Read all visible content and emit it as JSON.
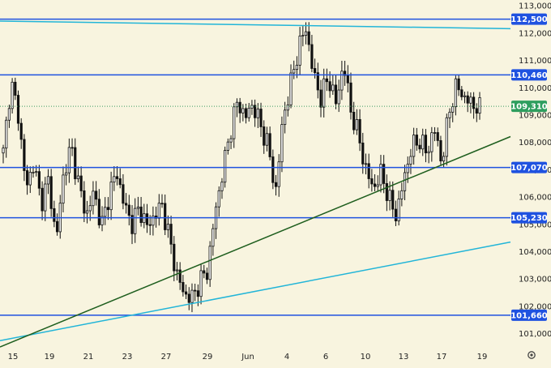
{
  "chart_data": {
    "type": "candlestick",
    "ylim": [
      100500,
      113200
    ],
    "y_ticks": [
      101000,
      102000,
      103000,
      104000,
      105000,
      106000,
      107000,
      108000,
      109000,
      110000,
      111000,
      112000,
      113000
    ],
    "y_tick_labels": [
      "101,000",
      "102,000",
      "103,000",
      "104,000",
      "105,000",
      "106,000",
      "107,000",
      "108,000",
      "109,000",
      "110,000",
      "111,000",
      "112,000",
      "113,000"
    ],
    "x_tick_labels": [
      "15",
      "19",
      "21",
      "23",
      "27",
      "29",
      "Jun",
      "4",
      "6",
      "10",
      "13",
      "17",
      "19"
    ],
    "horizontal_levels": [
      {
        "value": 112500,
        "label": "112,500"
      },
      {
        "value": 110460,
        "label": "110,460"
      },
      {
        "value": 107070,
        "label": "107,070"
      },
      {
        "value": 105230,
        "label": "105,230"
      },
      {
        "value": 101660,
        "label": "101,660"
      }
    ],
    "current_price": {
      "value": 109310,
      "label": "109,310"
    },
    "trendlines": [
      {
        "kind": "upper_resistance",
        "color": "#22b5d8",
        "from": 112430,
        "to": 112150
      },
      {
        "kind": "lower_channel",
        "color": "#22b5d8",
        "from": 100730,
        "to": 104340
      },
      {
        "kind": "uptrend_support",
        "color": "#1e5e1e",
        "from": 100500,
        "to": 108200
      }
    ],
    "close_path": [
      107600,
      110200,
      109000,
      106300,
      107200,
      105800,
      106600,
      104400,
      106900,
      107800,
      106400,
      105300,
      106200,
      104900,
      106100,
      106900,
      105700,
      105000,
      105600,
      104900,
      105300,
      105700,
      104400,
      103100,
      102400,
      102300,
      102900,
      103300,
      105400,
      106900,
      108400,
      109500,
      108900,
      109400,
      108600,
      107900,
      106100,
      108900,
      110100,
      111400,
      112200,
      110500,
      109600,
      110400,
      109400,
      110900,
      109100,
      108200,
      106900,
      106300,
      106900,
      105900,
      105300,
      106700,
      107800,
      108100,
      107600,
      108500,
      107200,
      109200,
      110100,
      109600,
      109400,
      109200
    ],
    "levels_color": "#1f52e0"
  },
  "ui": {
    "settings_icon": "gear-icon"
  }
}
